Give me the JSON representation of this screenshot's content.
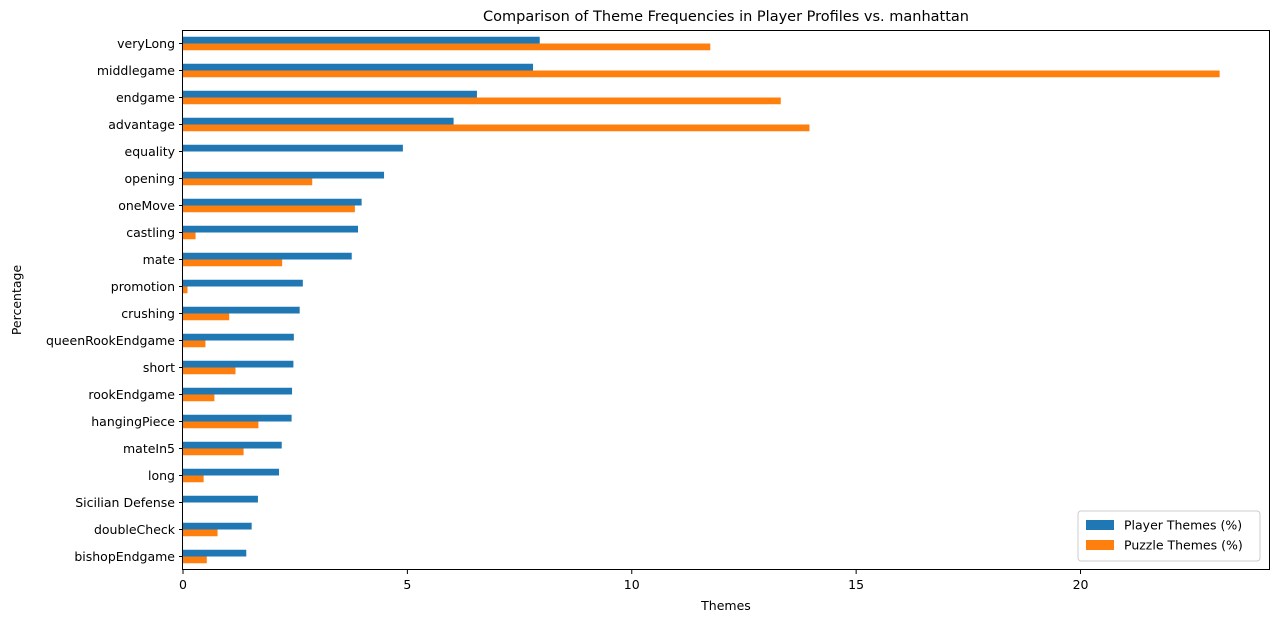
{
  "chart_data": {
    "type": "bar",
    "orientation": "horizontal",
    "title": "Comparison of Theme Frequencies in Player Profiles vs. manhattan",
    "xlabel": "Themes",
    "ylabel": "Percentage",
    "xlim": [
      0,
      24.2
    ],
    "xticks": [
      0,
      5,
      10,
      15,
      20
    ],
    "grid": false,
    "legend_position": "lower-right",
    "categories": [
      "veryLong",
      "middlegame",
      "endgame",
      "advantage",
      "equality",
      "opening",
      "oneMove",
      "castling",
      "mate",
      "promotion",
      "crushing",
      "queenRookEndgame",
      "short",
      "rookEndgame",
      "hangingPiece",
      "mateIn5",
      "long",
      "Sicilian Defense",
      "doubleCheck",
      "bishopEndgame"
    ],
    "series": [
      {
        "name": "Player Themes (%)",
        "color": "#1f77b4",
        "values": [
          7.95,
          7.8,
          6.55,
          6.03,
          4.9,
          4.48,
          3.98,
          3.9,
          3.76,
          2.67,
          2.6,
          2.47,
          2.46,
          2.43,
          2.42,
          2.2,
          2.14,
          1.67,
          1.53,
          1.41
        ]
      },
      {
        "name": "Puzzle Themes (%)",
        "color": "#ff7f0e",
        "values": [
          11.75,
          23.1,
          13.32,
          13.96,
          0.0,
          2.88,
          3.83,
          0.28,
          2.21,
          0.1,
          1.03,
          0.5,
          1.17,
          0.7,
          1.68,
          1.35,
          0.46,
          0.0,
          0.77,
          0.53
        ]
      }
    ]
  }
}
